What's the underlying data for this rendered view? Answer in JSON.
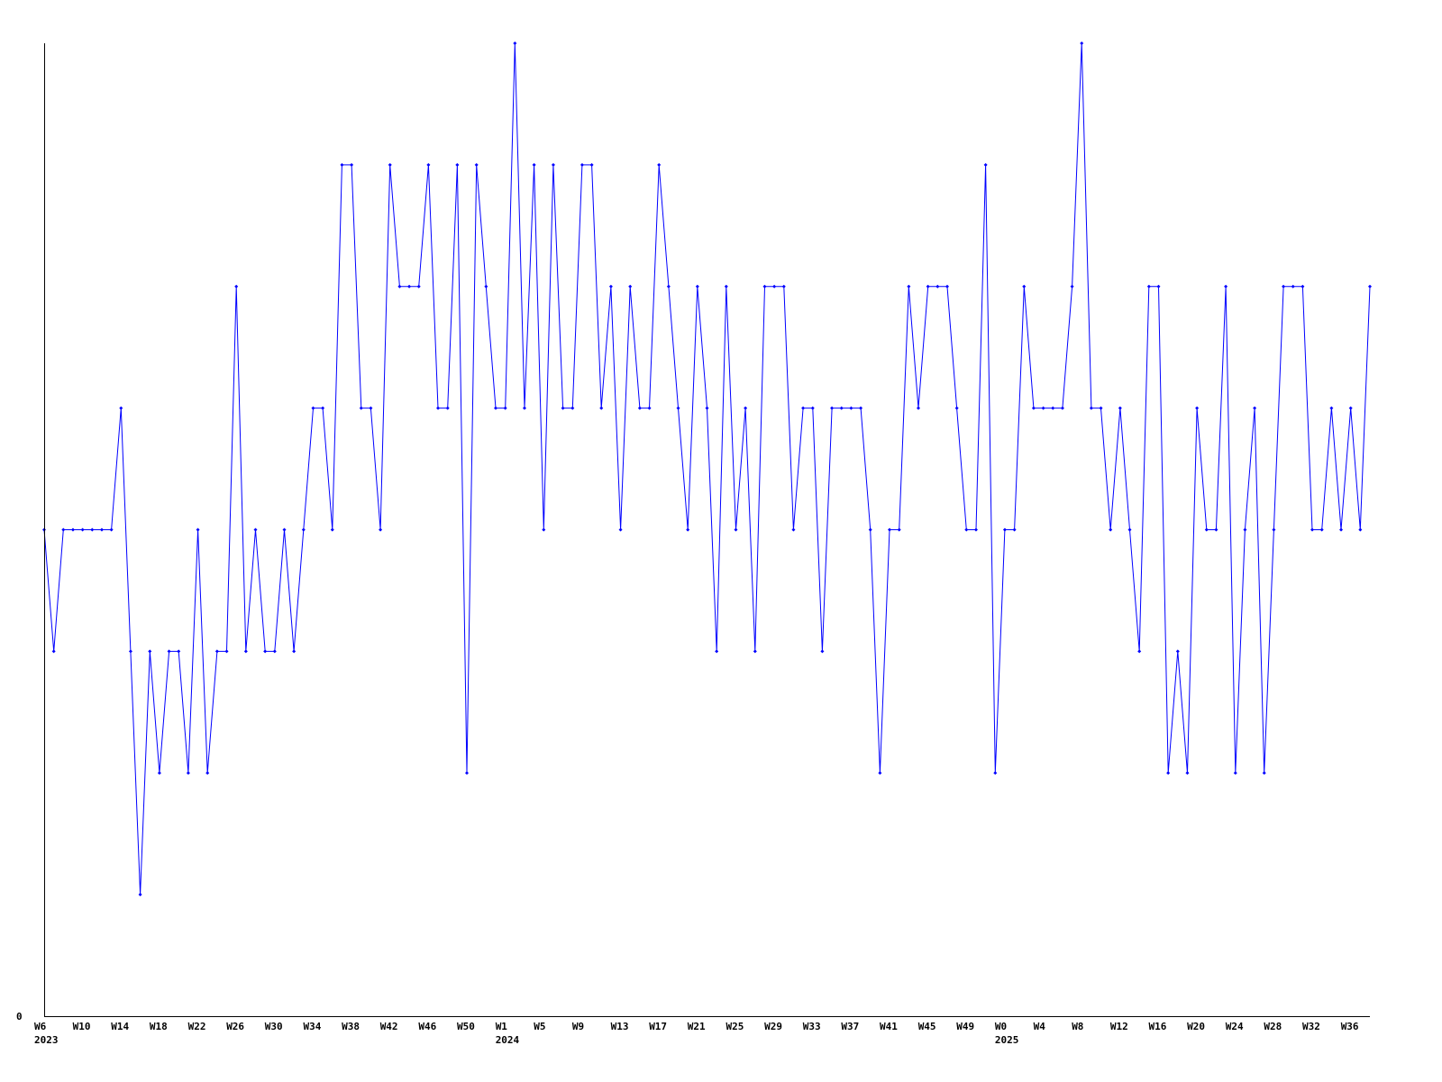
{
  "chart_data": {
    "type": "line",
    "title": "",
    "xlabel": "",
    "ylabel": "",
    "ylim": [
      0,
      8
    ],
    "y_tick_labels": [
      "0"
    ],
    "grid": false,
    "line_color": "#0000ff",
    "axis_color": "#000000",
    "values": [
      4,
      3,
      4,
      4,
      4,
      4,
      4,
      4,
      5,
      3,
      1,
      3,
      2,
      3,
      3,
      2,
      4,
      2,
      3,
      3,
      6,
      3,
      4,
      3,
      3,
      4,
      3,
      4,
      5,
      5,
      4,
      7,
      7,
      5,
      5,
      4,
      7,
      6,
      6,
      6,
      7,
      5,
      5,
      7,
      2,
      7,
      6,
      5,
      5,
      8,
      5,
      7,
      4,
      7,
      5,
      5,
      7,
      7,
      5,
      6,
      4,
      6,
      5,
      5,
      7,
      6,
      5,
      4,
      6,
      5,
      3,
      6,
      4,
      5,
      3,
      6,
      6,
      6,
      4,
      5,
      5,
      3,
      5,
      5,
      5,
      5,
      4,
      2,
      4,
      4,
      6,
      5,
      6,
      6,
      6,
      5,
      4,
      4,
      7,
      2,
      4,
      4,
      6,
      5,
      5,
      5,
      5,
      6,
      8,
      5,
      5,
      4,
      5,
      4,
      3,
      6,
      6,
      2,
      3,
      2,
      5,
      4,
      4,
      6,
      2,
      4,
      5,
      2,
      4,
      6,
      6,
      6,
      4,
      4,
      5,
      4,
      5,
      4,
      6
    ],
    "x_tick_every": 4,
    "x_tick_labels": [
      "W6",
      "W10",
      "W14",
      "W18",
      "W22",
      "W26",
      "W30",
      "W34",
      "W38",
      "W42",
      "W46",
      "W50",
      "W1",
      "W5",
      "W9",
      "W13",
      "W17",
      "W21",
      "W25",
      "W29",
      "W33",
      "W37",
      "W41",
      "W45",
      "W49",
      "W0",
      "W4",
      "W8",
      "W12",
      "W16",
      "W20",
      "W24",
      "W28",
      "W32",
      "W36"
    ],
    "year_labels": [
      {
        "label": "2023",
        "under_tick": "W6",
        "tick_index": 0
      },
      {
        "label": "2024",
        "under_tick": "W1",
        "tick_index": 12
      },
      {
        "label": "2025",
        "under_tick": "W0",
        "tick_index": 25
      }
    ]
  }
}
